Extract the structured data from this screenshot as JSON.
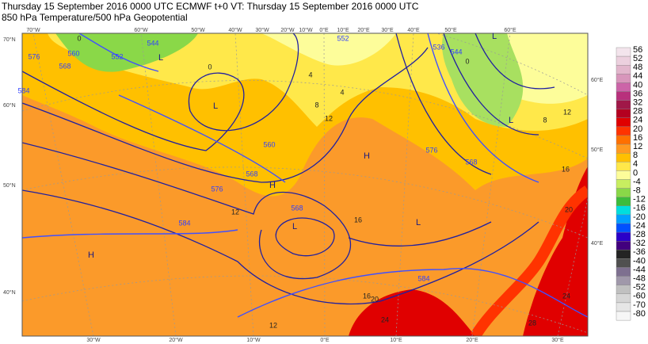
{
  "header": {
    "line1": "Thursday 15 September 2016 0000 UTC  ECMWF  t+0  VT: Thursday 15 September 2016 0000 UTC",
    "line2": "850 hPa Temperature/500 hPa Geopotential"
  },
  "colorbar": {
    "levels": [
      56,
      52,
      48,
      44,
      40,
      36,
      32,
      28,
      24,
      20,
      16,
      12,
      8,
      4,
      0,
      -4,
      -8,
      -12,
      -16,
      -20,
      -24,
      -28,
      -32,
      -36,
      -40,
      -44,
      -48,
      -52,
      -60,
      -70,
      -80
    ],
    "colors": [
      "#f3e4ec",
      "#ecd0de",
      "#e2b6cc",
      "#d896bb",
      "#cc64a8",
      "#b8307c",
      "#a01848",
      "#b40020",
      "#e00000",
      "#ff3300",
      "#ff7000",
      "#ff9a20",
      "#ffc000",
      "#ffe84a",
      "#fdfd9a",
      "#c8ee60",
      "#8ad848",
      "#3cbc3c",
      "#00dede",
      "#00a0ff",
      "#0050ff",
      "#2a00c8",
      "#42007e",
      "#242424",
      "#505050",
      "#7e7090",
      "#a098aa",
      "#c0c0c0",
      "#d6d6d6",
      "#e6e6e6",
      "#f6f6f6"
    ]
  },
  "map": {
    "lon_top": [
      "70°W",
      "60°W",
      "50°W",
      "40°W",
      "30°W",
      "20°W",
      "10°W",
      "0°E",
      "10°E",
      "20°E",
      "30°E",
      "40°E",
      "50°E",
      "60°E"
    ],
    "lon_bottom": [
      "30°W",
      "20°W",
      "10°W",
      "0°E",
      "10°E",
      "20°E",
      "30°E"
    ],
    "lat_left": [
      "70°N",
      "60°N",
      "50°N",
      "40°N"
    ],
    "lat_right": [
      "60°E",
      "50°E",
      "40°E"
    ],
    "pressure_centers": [
      "L",
      "L",
      "L",
      "L",
      "L",
      "L",
      "H",
      "H",
      "H"
    ],
    "geopotential_labels": [
      "552",
      "544",
      "552",
      "560",
      "576",
      "568",
      "584",
      "560",
      "568",
      "576",
      "584",
      "568",
      "536",
      "544",
      "576",
      "568",
      "584"
    ],
    "temperature_labels": [
      "0",
      "0",
      "4",
      "4",
      "8",
      "12",
      "0",
      "8",
      "12",
      "16",
      "20",
      "12",
      "16",
      "12",
      "16",
      "20",
      "24",
      "24",
      "28"
    ]
  }
}
